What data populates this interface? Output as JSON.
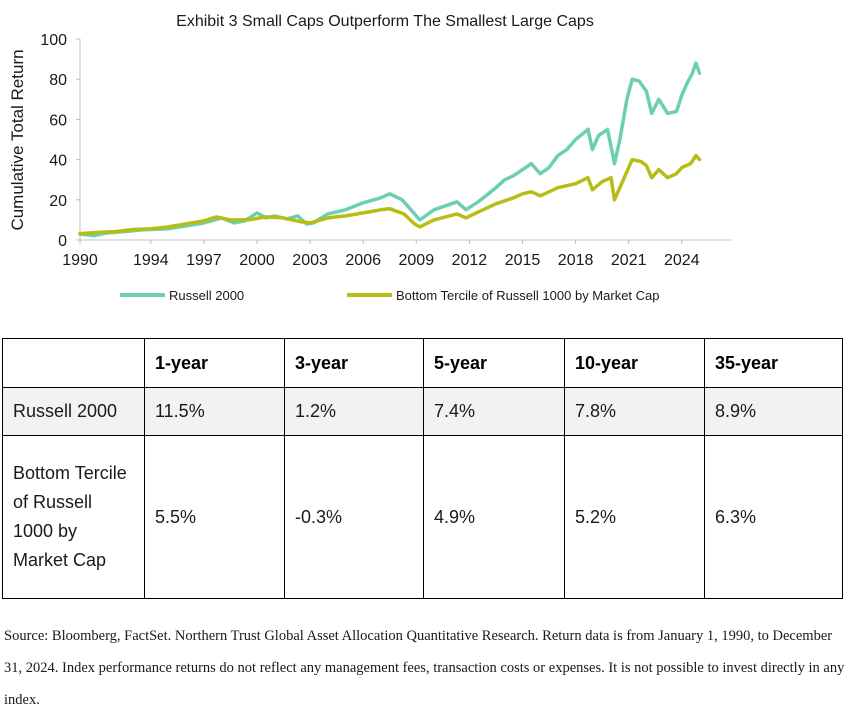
{
  "chart_data": {
    "type": "line",
    "title": "Exhibit 3 Small Caps Outperform The Smallest Large Caps",
    "ylabel": "Cumulative Total Return",
    "xlabel": "",
    "xlim": [
      1990,
      2025
    ],
    "ylim": [
      0,
      100
    ],
    "x_ticks": [
      "1990",
      "1994",
      "1997",
      "2000",
      "2003",
      "2006",
      "2009",
      "2012",
      "2015",
      "2018",
      "2021",
      "2024"
    ],
    "y_ticks": [
      "0",
      "20",
      "40",
      "60",
      "80",
      "100"
    ],
    "grid": false,
    "legend_position": "bottom",
    "series": [
      {
        "name": "Russell 2000",
        "color": "#6ccfb0",
        "points": [
          [
            1990.0,
            3.0
          ],
          [
            1990.8,
            2.2
          ],
          [
            1991.5,
            3.5
          ],
          [
            1992.5,
            4.2
          ],
          [
            1993.5,
            5.0
          ],
          [
            1994.0,
            5.2
          ],
          [
            1995.0,
            5.6
          ],
          [
            1996.0,
            7.0
          ],
          [
            1997.0,
            8.5
          ],
          [
            1998.0,
            11.0
          ],
          [
            1998.7,
            8.5
          ],
          [
            1999.3,
            9.5
          ],
          [
            2000.0,
            13.5
          ],
          [
            2000.5,
            11.0
          ],
          [
            2001.0,
            12.0
          ],
          [
            2001.7,
            10.5
          ],
          [
            2002.3,
            12.0
          ],
          [
            2002.8,
            8.0
          ],
          [
            2003.2,
            8.5
          ],
          [
            2004.0,
            13.0
          ],
          [
            2005.0,
            15.0
          ],
          [
            2006.0,
            18.5
          ],
          [
            2007.0,
            21.0
          ],
          [
            2007.5,
            23.0
          ],
          [
            2008.2,
            20.0
          ],
          [
            2008.8,
            14.0
          ],
          [
            2009.2,
            10.0
          ],
          [
            2010.0,
            15.0
          ],
          [
            2011.3,
            19.0
          ],
          [
            2011.8,
            15.0
          ],
          [
            2012.5,
            19.0
          ],
          [
            2013.5,
            26.0
          ],
          [
            2014.0,
            30.0
          ],
          [
            2014.5,
            32.0
          ],
          [
            2015.0,
            35.0
          ],
          [
            2015.5,
            38.0
          ],
          [
            2016.0,
            33.0
          ],
          [
            2016.5,
            36.0
          ],
          [
            2017.0,
            42.0
          ],
          [
            2017.5,
            45.0
          ],
          [
            2018.0,
            50.0
          ],
          [
            2018.7,
            55.0
          ],
          [
            2018.95,
            45.0
          ],
          [
            2019.3,
            52.0
          ],
          [
            2019.8,
            55.0
          ],
          [
            2020.2,
            38.0
          ],
          [
            2020.5,
            50.0
          ],
          [
            2020.9,
            70.0
          ],
          [
            2021.2,
            80.0
          ],
          [
            2021.6,
            79.0
          ],
          [
            2022.0,
            74.0
          ],
          [
            2022.3,
            63.0
          ],
          [
            2022.7,
            70.0
          ],
          [
            2023.2,
            63.0
          ],
          [
            2023.7,
            64.0
          ],
          [
            2024.0,
            72.0
          ],
          [
            2024.3,
            78.0
          ],
          [
            2024.6,
            83.0
          ],
          [
            2024.8,
            88.0
          ],
          [
            2025.0,
            83.0
          ]
        ]
      },
      {
        "name": "Bottom Tercile of Russell 1000 by Market Cap",
        "color": "#b8bd16",
        "points": [
          [
            1990.0,
            3.2
          ],
          [
            1991.0,
            3.8
          ],
          [
            1992.0,
            4.2
          ],
          [
            1993.0,
            5.2
          ],
          [
            1994.0,
            5.5
          ],
          [
            1995.0,
            6.5
          ],
          [
            1996.0,
            8.0
          ],
          [
            1997.0,
            9.5
          ],
          [
            1997.7,
            11.5
          ],
          [
            1998.5,
            10.0
          ],
          [
            1999.5,
            10.0
          ],
          [
            2000.5,
            11.5
          ],
          [
            2001.5,
            11.0
          ],
          [
            2002.5,
            9.0
          ],
          [
            2003.0,
            8.5
          ],
          [
            2004.0,
            11.0
          ],
          [
            2005.0,
            12.0
          ],
          [
            2006.0,
            13.5
          ],
          [
            2007.0,
            15.0
          ],
          [
            2007.5,
            15.5
          ],
          [
            2008.3,
            13.0
          ],
          [
            2008.9,
            8.0
          ],
          [
            2009.2,
            6.5
          ],
          [
            2010.0,
            10.0
          ],
          [
            2011.3,
            13.0
          ],
          [
            2011.8,
            11.0
          ],
          [
            2012.5,
            14.0
          ],
          [
            2013.5,
            18.0
          ],
          [
            2014.5,
            21.0
          ],
          [
            2015.0,
            23.0
          ],
          [
            2015.5,
            24.0
          ],
          [
            2016.0,
            22.0
          ],
          [
            2016.5,
            24.0
          ],
          [
            2017.0,
            26.0
          ],
          [
            2018.0,
            28.0
          ],
          [
            2018.7,
            31.0
          ],
          [
            2018.95,
            25.0
          ],
          [
            2019.5,
            29.0
          ],
          [
            2020.0,
            31.0
          ],
          [
            2020.2,
            20.0
          ],
          [
            2020.6,
            28.0
          ],
          [
            2020.9,
            34.0
          ],
          [
            2021.2,
            40.0
          ],
          [
            2021.7,
            39.0
          ],
          [
            2022.0,
            37.0
          ],
          [
            2022.3,
            31.0
          ],
          [
            2022.7,
            35.0
          ],
          [
            2023.2,
            31.0
          ],
          [
            2023.7,
            33.0
          ],
          [
            2024.0,
            36.0
          ],
          [
            2024.5,
            38.0
          ],
          [
            2024.8,
            42.0
          ],
          [
            2025.0,
            40.0
          ]
        ]
      }
    ]
  },
  "table": {
    "headers": [
      "",
      "1-year",
      "3-year",
      "5-year",
      "10-year",
      "35-year"
    ],
    "rows": [
      {
        "label": "Russell 2000",
        "values": [
          "11.5%",
          "1.2%",
          "7.4%",
          "7.8%",
          "8.9%"
        ]
      },
      {
        "label": "Bottom Tercile of Russell 1000 by Market Cap",
        "values": [
          "5.5%",
          "-0.3%",
          "4.9%",
          "5.2%",
          "6.3%"
        ]
      }
    ]
  },
  "source_note": "Source: Bloomberg, FactSet. Northern Trust Global Asset Allocation Quantitative Research. Return data is from January 1, 1990, to December 31, 2024. Index performance returns do not reflect any management fees, transaction costs or expenses. It is not possible to invest directly in any index."
}
